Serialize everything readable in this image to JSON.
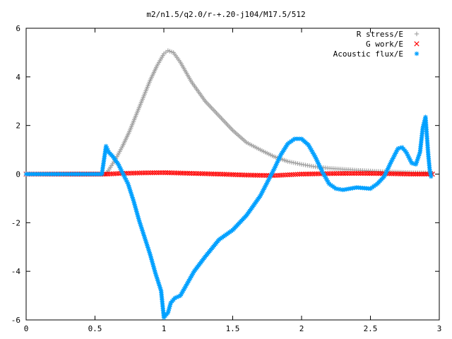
{
  "chart_data": {
    "type": "scatter",
    "title": "m2/n1.5/q2.0/r-+.20-j104/M17.5/512",
    "xlabel": "",
    "ylabel": "",
    "xlim": [
      0,
      3
    ],
    "ylim": [
      -6,
      6
    ],
    "xticks": [
      "0",
      "0.5",
      "1",
      "1.5",
      "2",
      "2.5",
      "3"
    ],
    "yticks": [
      "-6",
      "-4",
      "-2",
      "0",
      "2",
      "4",
      "6"
    ],
    "grid": false,
    "legend_position": "top-right",
    "series": [
      {
        "name": "R stress/E",
        "color": "#a0a0a0",
        "marker": "plus",
        "points": [
          [
            0.58,
            0.0
          ],
          [
            0.62,
            0.35
          ],
          [
            0.66,
            0.72
          ],
          [
            0.7,
            1.15
          ],
          [
            0.75,
            1.75
          ],
          [
            0.8,
            2.45
          ],
          [
            0.85,
            3.15
          ],
          [
            0.9,
            3.85
          ],
          [
            0.95,
            4.45
          ],
          [
            1.0,
            4.95
          ],
          [
            1.03,
            5.08
          ],
          [
            1.07,
            5.0
          ],
          [
            1.12,
            4.6
          ],
          [
            1.2,
            3.8
          ],
          [
            1.3,
            3.0
          ],
          [
            1.4,
            2.4
          ],
          [
            1.5,
            1.8
          ],
          [
            1.6,
            1.3
          ],
          [
            1.7,
            1.0
          ],
          [
            1.8,
            0.72
          ],
          [
            1.9,
            0.52
          ],
          [
            2.0,
            0.4
          ],
          [
            2.1,
            0.3
          ],
          [
            2.2,
            0.24
          ],
          [
            2.3,
            0.2
          ],
          [
            2.4,
            0.16
          ],
          [
            2.5,
            0.13
          ],
          [
            2.6,
            0.1
          ],
          [
            2.7,
            0.08
          ],
          [
            2.8,
            0.06
          ],
          [
            2.9,
            0.05
          ],
          [
            2.95,
            0.04
          ]
        ]
      },
      {
        "name": "G work/E",
        "color": "#ff0000",
        "marker": "cross",
        "points": [
          [
            0.0,
            0.0
          ],
          [
            0.58,
            0.0
          ],
          [
            0.7,
            0.03
          ],
          [
            0.85,
            0.05
          ],
          [
            1.0,
            0.06
          ],
          [
            1.2,
            0.03
          ],
          [
            1.4,
            0.0
          ],
          [
            1.6,
            -0.04
          ],
          [
            1.8,
            -0.06
          ],
          [
            1.9,
            -0.03
          ],
          [
            2.0,
            0.0
          ],
          [
            2.2,
            0.02
          ],
          [
            2.4,
            0.03
          ],
          [
            2.6,
            0.02
          ],
          [
            2.8,
            0.0
          ],
          [
            2.95,
            0.0
          ]
        ]
      },
      {
        "name": "Acoustic flux/E",
        "color": "#00a0ff",
        "marker": "star",
        "points": [
          [
            0.0,
            0.0
          ],
          [
            0.55,
            0.0
          ],
          [
            0.58,
            1.15
          ],
          [
            0.6,
            0.9
          ],
          [
            0.63,
            0.72
          ],
          [
            0.67,
            0.4
          ],
          [
            0.7,
            0.05
          ],
          [
            0.74,
            -0.4
          ],
          [
            0.78,
            -1.1
          ],
          [
            0.82,
            -1.9
          ],
          [
            0.86,
            -2.6
          ],
          [
            0.9,
            -3.3
          ],
          [
            0.94,
            -4.1
          ],
          [
            0.98,
            -4.8
          ],
          [
            1.0,
            -5.9
          ],
          [
            1.03,
            -5.7
          ],
          [
            1.05,
            -5.3
          ],
          [
            1.08,
            -5.1
          ],
          [
            1.12,
            -5.0
          ],
          [
            1.16,
            -4.6
          ],
          [
            1.22,
            -4.0
          ],
          [
            1.3,
            -3.4
          ],
          [
            1.4,
            -2.7
          ],
          [
            1.5,
            -2.3
          ],
          [
            1.6,
            -1.7
          ],
          [
            1.7,
            -0.9
          ],
          [
            1.8,
            0.2
          ],
          [
            1.85,
            0.8
          ],
          [
            1.9,
            1.25
          ],
          [
            1.95,
            1.45
          ],
          [
            2.0,
            1.45
          ],
          [
            2.05,
            1.2
          ],
          [
            2.1,
            0.7
          ],
          [
            2.15,
            0.1
          ],
          [
            2.2,
            -0.4
          ],
          [
            2.25,
            -0.6
          ],
          [
            2.3,
            -0.65
          ],
          [
            2.4,
            -0.55
          ],
          [
            2.5,
            -0.6
          ],
          [
            2.55,
            -0.4
          ],
          [
            2.6,
            -0.1
          ],
          [
            2.65,
            0.5
          ],
          [
            2.7,
            1.05
          ],
          [
            2.73,
            1.1
          ],
          [
            2.76,
            0.9
          ],
          [
            2.8,
            0.45
          ],
          [
            2.83,
            0.4
          ],
          [
            2.86,
            0.9
          ],
          [
            2.88,
            1.9
          ],
          [
            2.9,
            2.35
          ],
          [
            2.92,
            0.8
          ],
          [
            2.93,
            0.2
          ],
          [
            2.94,
            -0.1
          ]
        ]
      }
    ]
  }
}
